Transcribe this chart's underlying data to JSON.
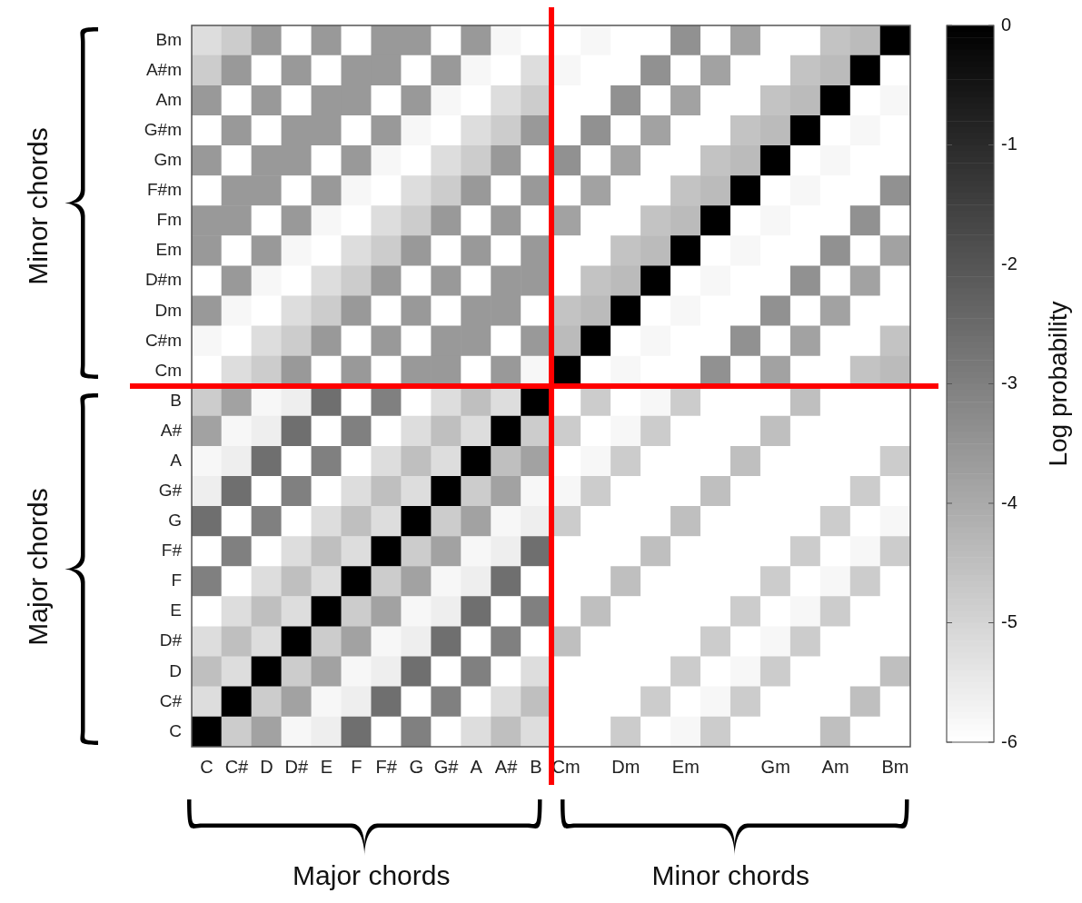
{
  "chart_data": {
    "type": "heatmap",
    "clabel": "Log probability",
    "clim": [
      -6,
      0
    ],
    "cticks": [
      0,
      -1,
      -2,
      -3,
      -4,
      -5,
      -6
    ],
    "annotations": [
      "Minor chords",
      "Major chords",
      "Major chords",
      "Minor chords"
    ],
    "categories": [
      "C",
      "C#",
      "D",
      "D#",
      "E",
      "F",
      "F#",
      "G",
      "G#",
      "A",
      "A#",
      "B",
      "Cm",
      null,
      "Dm",
      null,
      "Em",
      null,
      null,
      "Gm",
      null,
      "Am",
      null,
      "Bm"
    ],
    "y_categories": [
      "Bm",
      "A#m",
      "Am",
      "G#m",
      "Gm",
      "F#m",
      "Fm",
      "Em",
      "D#m",
      "Dm",
      "C#m",
      "Cm",
      "B",
      "A#",
      "A",
      "G#",
      "G",
      "F#",
      "F",
      "E",
      "D#",
      "D",
      "C#",
      "C"
    ],
    "cells": [
      [
        -5.2,
        -4.8,
        -3.6,
        -6,
        -3.6,
        -6,
        -3.6,
        -3.6,
        -6,
        -3.6,
        -5.8,
        -6,
        -6,
        -5.8,
        -6,
        -6,
        -3.4,
        -6,
        -3.8,
        -6,
        -6,
        -4.6,
        -4.4,
        0
      ],
      [
        -4.8,
        -3.6,
        -6,
        -3.6,
        -6,
        -3.6,
        -3.6,
        -6,
        -3.6,
        -5.8,
        -6,
        -5.2,
        -5.8,
        -6,
        -6,
        -3.4,
        -6,
        -3.8,
        -6,
        -6,
        -4.6,
        -4.4,
        0,
        -6
      ],
      [
        -3.6,
        -6,
        -3.6,
        -6,
        -3.6,
        -3.6,
        -6,
        -3.6,
        -5.8,
        -6,
        -5.2,
        -4.8,
        -6,
        -6,
        -3.4,
        -6,
        -3.8,
        -6,
        -6,
        -4.6,
        -4.4,
        0,
        -6,
        -5.8
      ],
      [
        -6,
        -3.6,
        -6,
        -3.6,
        -3.6,
        -6,
        -3.6,
        -5.8,
        -6,
        -5.2,
        -4.8,
        -3.6,
        -6,
        -3.4,
        -6,
        -3.8,
        -6,
        -6,
        -4.6,
        -4.4,
        0,
        -6,
        -5.8,
        -6
      ],
      [
        -3.6,
        -6,
        -3.6,
        -3.6,
        -6,
        -3.6,
        -5.8,
        -6,
        -5.2,
        -4.8,
        -3.6,
        -6,
        -3.4,
        -6,
        -3.8,
        -6,
        -6,
        -4.6,
        -4.4,
        0,
        -6,
        -5.8,
        -6,
        -6
      ],
      [
        -6,
        -3.6,
        -3.6,
        -6,
        -3.6,
        -5.8,
        -6,
        -5.2,
        -4.8,
        -3.6,
        -6,
        -3.6,
        -6,
        -3.8,
        -6,
        -6,
        -4.6,
        -4.4,
        0,
        -6,
        -5.8,
        -6,
        -6,
        -3.4
      ],
      [
        -3.6,
        -3.6,
        -6,
        -3.6,
        -5.8,
        -6,
        -5.2,
        -4.8,
        -3.6,
        -6,
        -3.6,
        -6,
        -3.8,
        -6,
        -6,
        -4.6,
        -4.4,
        0,
        -6,
        -5.8,
        -6,
        -6,
        -3.4,
        -6
      ],
      [
        -3.6,
        -6,
        -3.6,
        -5.8,
        -6,
        -5.2,
        -4.8,
        -3.6,
        -6,
        -3.6,
        -6,
        -3.6,
        -6,
        -6,
        -4.6,
        -4.4,
        0,
        -6,
        -5.8,
        -6,
        -6,
        -3.4,
        -6,
        -3.8
      ],
      [
        -6,
        -3.6,
        -5.8,
        -6,
        -5.2,
        -4.8,
        -3.6,
        -6,
        -3.6,
        -6,
        -3.6,
        -3.6,
        -6,
        -4.6,
        -4.4,
        0,
        -6,
        -5.8,
        -6,
        -6,
        -3.4,
        -6,
        -3.8,
        -6
      ],
      [
        -3.6,
        -5.8,
        -6,
        -5.2,
        -4.8,
        -3.6,
        -6,
        -3.6,
        -6,
        -3.6,
        -3.6,
        -6,
        -4.6,
        -4.4,
        0,
        -6,
        -5.8,
        -6,
        -6,
        -3.4,
        -6,
        -3.8,
        -6,
        -6
      ],
      [
        -5.8,
        -6,
        -5.2,
        -4.8,
        -3.6,
        -6,
        -3.6,
        -6,
        -3.6,
        -3.6,
        -6,
        -3.6,
        -4.4,
        0,
        -6,
        -5.8,
        -6,
        -6,
        -3.4,
        -6,
        -3.8,
        -6,
        -6,
        -4.6
      ],
      [
        -6,
        -5.2,
        -4.8,
        -3.6,
        -6,
        -3.6,
        -6,
        -3.6,
        -3.6,
        -6,
        -3.6,
        -5.8,
        0,
        -6,
        -5.8,
        -6,
        -6,
        -3.4,
        -6,
        -3.8,
        -6,
        -6,
        -4.6,
        -4.4
      ],
      [
        -4.8,
        -3.8,
        -5.8,
        -5.6,
        -2.6,
        -6,
        -3,
        -6,
        -5.2,
        -4.5,
        -5.2,
        0,
        -6,
        -4.8,
        -6,
        -5.8,
        -4.8,
        -6,
        -6,
        -6,
        -4.5,
        -6,
        -6,
        -6
      ],
      [
        -3.8,
        -5.8,
        -5.6,
        -2.6,
        -6,
        -3,
        -6,
        -5.2,
        -4.5,
        -5.2,
        0,
        -4.8,
        -4.8,
        -6,
        -5.8,
        -4.8,
        -6,
        -6,
        -6,
        -4.5,
        -6,
        -6,
        -6,
        -6
      ],
      [
        -5.8,
        -5.6,
        -2.6,
        -6,
        -3,
        -6,
        -5.2,
        -4.5,
        -5.2,
        0,
        -4.5,
        -3.8,
        -6,
        -5.8,
        -4.8,
        -6,
        -6,
        -6,
        -4.5,
        -6,
        -6,
        -6,
        -6,
        -4.8
      ],
      [
        -5.6,
        -2.6,
        -6,
        -3,
        -6,
        -5.2,
        -4.5,
        -5.2,
        0,
        -4.8,
        -3.8,
        -5.8,
        -5.8,
        -4.8,
        -6,
        -6,
        -6,
        -4.5,
        -6,
        -6,
        -6,
        -6,
        -4.8,
        -6
      ],
      [
        -2.6,
        -6,
        -3,
        -6,
        -5.2,
        -4.5,
        -5.2,
        0,
        -4.8,
        -3.8,
        -5.8,
        -5.6,
        -4.8,
        -6,
        -6,
        -6,
        -4.5,
        -6,
        -6,
        -6,
        -6,
        -4.8,
        -6,
        -5.8
      ],
      [
        -6,
        -3,
        -6,
        -5.2,
        -4.5,
        -5.2,
        0,
        -4.8,
        -3.8,
        -5.8,
        -5.6,
        -2.6,
        -6,
        -6,
        -6,
        -4.5,
        -6,
        -6,
        -6,
        -6,
        -4.8,
        -6,
        -5.8,
        -4.8
      ],
      [
        -3,
        -6,
        -5.2,
        -4.5,
        -5.2,
        0,
        -4.8,
        -3.8,
        -5.8,
        -5.6,
        -2.6,
        -6,
        -6,
        -6,
        -4.5,
        -6,
        -6,
        -6,
        -6,
        -4.8,
        -6,
        -5.8,
        -4.8,
        -6
      ],
      [
        -6,
        -5.2,
        -4.5,
        -5.2,
        0,
        -4.8,
        -3.8,
        -5.8,
        -5.6,
        -2.6,
        -6,
        -3,
        -6,
        -4.5,
        -6,
        -6,
        -6,
        -6,
        -4.8,
        -6,
        -5.8,
        -4.8,
        -6,
        -6
      ],
      [
        -5.2,
        -4.5,
        -5.2,
        0,
        -4.8,
        -3.8,
        -5.8,
        -5.6,
        -2.6,
        -6,
        -3,
        -6,
        -4.5,
        -6,
        -6,
        -6,
        -6,
        -4.8,
        -6,
        -5.8,
        -4.8,
        -6,
        -6,
        -6
      ],
      [
        -4.5,
        -5.2,
        0,
        -4.8,
        -3.8,
        -5.8,
        -5.6,
        -2.6,
        -6,
        -3,
        -6,
        -5.2,
        -6,
        -6,
        -6,
        -6,
        -4.8,
        -6,
        -5.8,
        -4.8,
        -6,
        -6,
        -6,
        -4.5
      ],
      [
        -5.2,
        0,
        -4.8,
        -3.8,
        -5.8,
        -5.6,
        -2.6,
        -6,
        -3,
        -6,
        -5.2,
        -4.5,
        -6,
        -6,
        -6,
        -4.8,
        -6,
        -5.8,
        -4.8,
        -6,
        -6,
        -6,
        -4.5,
        -6
      ],
      [
        0,
        -4.8,
        -3.8,
        -5.8,
        -5.6,
        -2.6,
        -6,
        -3,
        -6,
        -5.2,
        -4.5,
        -5.2,
        -6,
        -6,
        -4.8,
        -6,
        -5.8,
        -4.8,
        -6,
        -6,
        -6,
        -4.5,
        -6,
        -6
      ]
    ]
  }
}
